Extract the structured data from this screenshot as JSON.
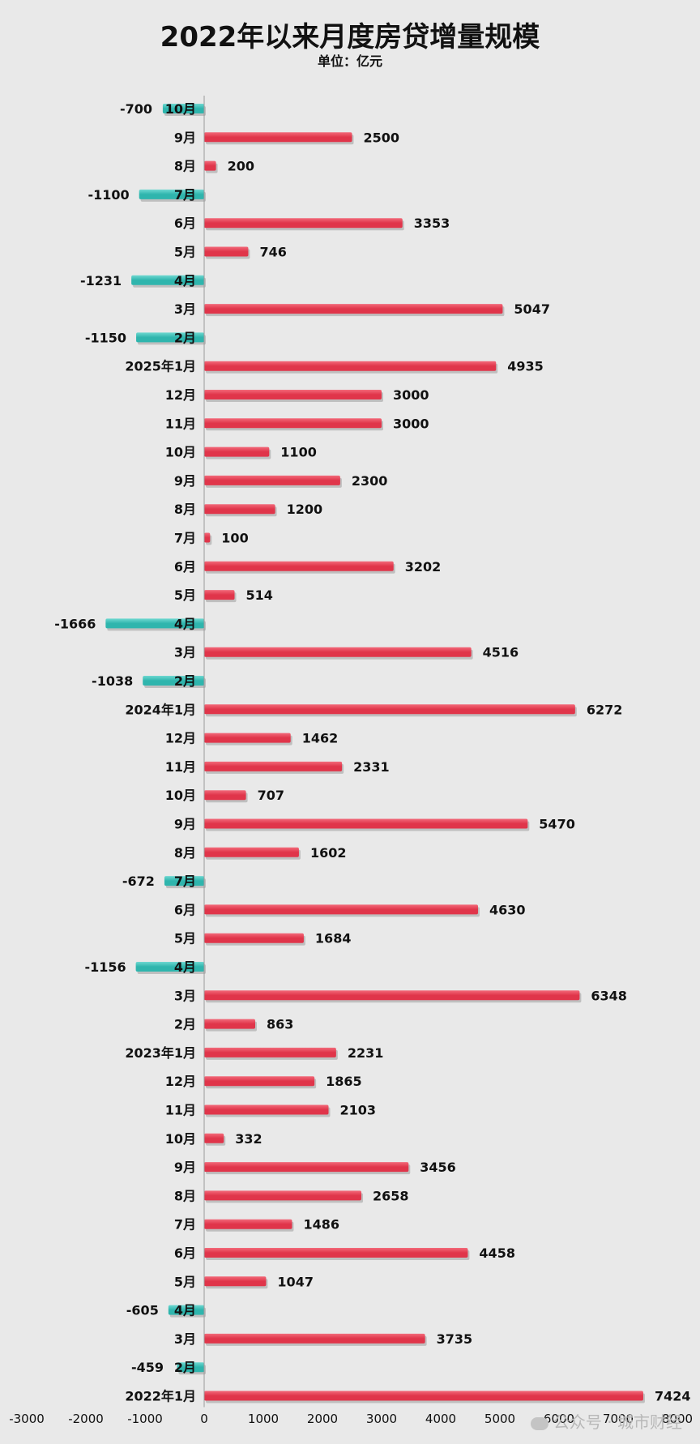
{
  "title": "2022年以来月度房贷增量规模",
  "subtitle": "单位：亿元",
  "watermark": "公众号 · 城市财经",
  "colors": {
    "positive": "#e0354a",
    "positive_light": "#f26a7a",
    "negative": "#2fb5ad",
    "negative_light": "#6ed8d1",
    "background": "#e9e9e9"
  },
  "chart_data": {
    "type": "bar",
    "orientation": "horizontal",
    "title": "2022年以来月度房贷增量规模",
    "unit": "单位：亿元",
    "xlim": [
      -3000,
      8000
    ],
    "xticks": [
      -3000,
      -2000,
      -1000,
      0,
      1000,
      2000,
      3000,
      4000,
      5000,
      6000,
      7000,
      8000
    ],
    "grid": false,
    "categories": [
      "10月",
      "9月",
      "8月",
      "7月",
      "6月",
      "5月",
      "4月",
      "3月",
      "2月",
      "2025年1月",
      "12月",
      "11月",
      "10月",
      "9月",
      "8月",
      "7月",
      "6月",
      "5月",
      "4月",
      "3月",
      "2月",
      "2024年1月",
      "12月",
      "11月",
      "10月",
      "9月",
      "8月",
      "7月",
      "6月",
      "5月",
      "4月",
      "3月",
      "2月",
      "2023年1月",
      "12月",
      "11月",
      "10月",
      "9月",
      "8月",
      "7月",
      "6月",
      "5月",
      "4月",
      "3月",
      "2月",
      "2022年1月"
    ],
    "values": [
      -700,
      2500,
      200,
      -1100,
      3353,
      746,
      -1231,
      5047,
      -1150,
      4935,
      3000,
      3000,
      1100,
      2300,
      1200,
      100,
      3202,
      514,
      -1666,
      4516,
      -1038,
      6272,
      1462,
      2331,
      707,
      5470,
      1602,
      -672,
      4630,
      1684,
      -1156,
      6348,
      863,
      2231,
      1865,
      2103,
      332,
      3456,
      2658,
      1486,
      4458,
      1047,
      -605,
      3735,
      -459,
      7424
    ]
  }
}
